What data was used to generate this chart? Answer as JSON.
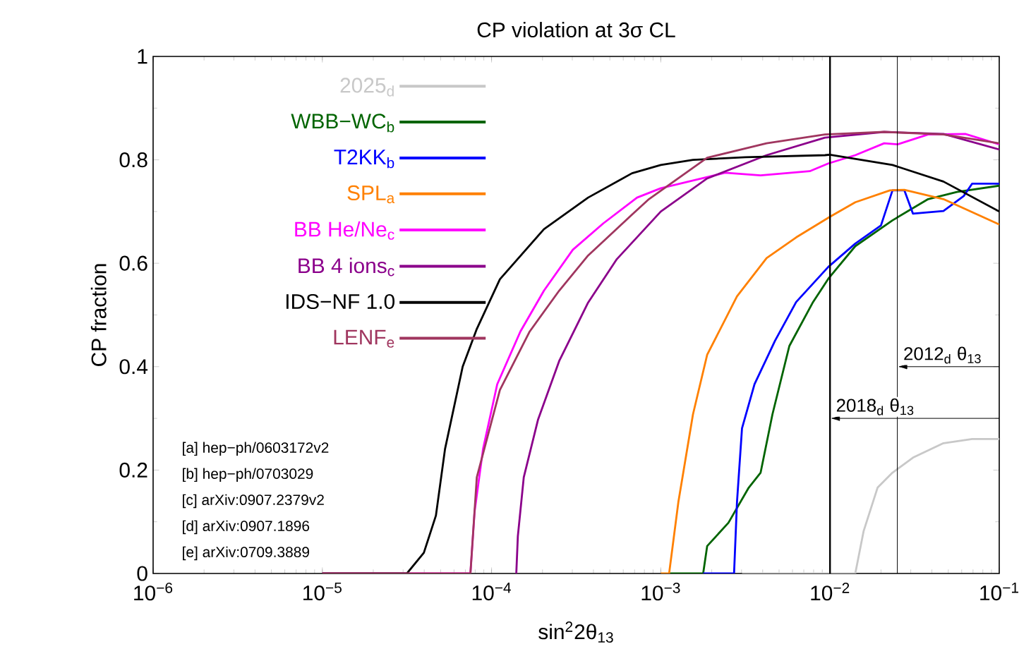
{
  "chart_data": {
    "type": "line",
    "title": "CP violation at 3σ CL",
    "xlabel": "sin$^{2}$2θ$_{13}$",
    "ylabel": "CP fraction",
    "log": "x",
    "xlim": [
      1e-06,
      0.1
    ],
    "ylim": [
      0,
      1
    ],
    "xticks": [
      {
        "value": 1e-06,
        "label": "10$^{−6}$"
      },
      {
        "value": 1e-05,
        "label": "10$^{−5}$"
      },
      {
        "value": 0.0001,
        "label": "10$^{−4}$"
      },
      {
        "value": 0.001,
        "label": "10$^{−3}$"
      },
      {
        "value": 0.01,
        "label": "10$^{−2}$"
      },
      {
        "value": 0.1,
        "label": "10$^{−1}$"
      }
    ],
    "yticks": [
      0,
      0.2,
      0.4,
      0.6,
      0.8,
      1
    ],
    "grid": false,
    "legend": "top left",
    "marker": "none",
    "line_style": "solid",
    "series": [
      {
        "name": "2025$_{d}$",
        "color": "#c8c8c8",
        "x": [
          0.00302,
          0.0141,
          0.0158,
          0.0191,
          0.0234,
          0.0309,
          0.0468,
          0.0692,
          0.1
        ],
        "values": [
          0,
          0,
          0.082,
          0.166,
          0.195,
          0.224,
          0.252,
          0.26,
          0.26
        ]
      },
      {
        "name": "WBB−WC$_{b}$",
        "color": "#006400",
        "x": [
          0.00112,
          0.00178,
          0.00188,
          0.00251,
          0.00331,
          0.00389,
          0.00457,
          0.00575,
          0.00794,
          0.00977,
          0.0141,
          0.0234,
          0.038,
          0.0562,
          0.1
        ],
        "values": [
          0,
          0,
          0.053,
          0.098,
          0.166,
          0.195,
          0.308,
          0.44,
          0.525,
          0.57,
          0.633,
          0.683,
          0.724,
          0.738,
          0.75
        ]
      },
      {
        "name": "T2KK$_{b}$",
        "color": "#0000ff",
        "x": [
          0.00178,
          0.00271,
          0.00282,
          0.00302,
          0.00358,
          0.00473,
          0.00631,
          0.00977,
          0.0141,
          0.02,
          0.0234,
          0.0275,
          0.0309,
          0.0468,
          0.0617,
          0.0692,
          0.1
        ],
        "values": [
          0,
          0,
          0.138,
          0.281,
          0.366,
          0.45,
          0.525,
          0.593,
          0.638,
          0.673,
          0.741,
          0.741,
          0.696,
          0.701,
          0.73,
          0.754,
          0.754
        ]
      },
      {
        "name": "SPL$_{a}$",
        "color": "#ff8000",
        "x": [
          0.001,
          0.00112,
          0.00127,
          0.00155,
          0.00188,
          0.00282,
          0.00422,
          0.00631,
          0.01,
          0.0141,
          0.0226,
          0.0275,
          0.0468,
          0.0955,
          0.1
        ],
        "values": [
          0,
          0,
          0.138,
          0.308,
          0.423,
          0.536,
          0.61,
          0.65,
          0.69,
          0.718,
          0.741,
          0.742,
          0.724,
          0.678,
          0.675
        ]
      },
      {
        "name": "BB He/Ne$_{c}$",
        "color": "#ff00ff",
        "x": [
          1e-05,
          7.5e-05,
          7.94e-05,
          8.91e-05,
          0.000108,
          0.000148,
          0.000204,
          0.000302,
          0.000457,
          0.000724,
          0.001,
          0.0024,
          0.00389,
          0.00759,
          0.00977,
          0.0141,
          0.0209,
          0.0251,
          0.038,
          0.063,
          0.1
        ],
        "values": [
          0,
          0,
          0.12,
          0.241,
          0.366,
          0.468,
          0.547,
          0.626,
          0.677,
          0.727,
          0.745,
          0.775,
          0.77,
          0.778,
          0.793,
          0.809,
          0.832,
          0.83,
          0.849,
          0.85,
          0.83
        ]
      },
      {
        "name": "BB 4 ions$_{c}$",
        "color": "#8b008b",
        "x": [
          0.00014,
          0.000143,
          0.000155,
          0.000188,
          0.000251,
          0.000372,
          0.00055,
          0.001,
          0.00188,
          0.00422,
          0.00933,
          0.0209,
          0.0468,
          0.1
        ],
        "values": [
          0,
          0.072,
          0.186,
          0.297,
          0.411,
          0.524,
          0.608,
          0.7,
          0.764,
          0.809,
          0.843,
          0.854,
          0.85,
          0.82
        ]
      },
      {
        "name": "IDS−NF 1.0",
        "color": "#000000",
        "x": [
          1e-05,
          3.16e-05,
          3.98e-05,
          4.69e-05,
          5.31e-05,
          6.75e-05,
          8.18e-05,
          0.000112,
          0.000204,
          0.000372,
          0.000676,
          0.001,
          0.00155,
          0.00316,
          0.00933,
          0.01,
          0.0234,
          0.0468,
          0.1
        ],
        "values": [
          0,
          0,
          0.04,
          0.112,
          0.241,
          0.4,
          0.473,
          0.569,
          0.666,
          0.727,
          0.774,
          0.79,
          0.8,
          0.805,
          0.809,
          0.81,
          0.79,
          0.758,
          0.7
        ]
      },
      {
        "name": "LENF$_{e}$",
        "color": "#a0365f",
        "x": [
          1e-05,
          7.5e-05,
          8.18e-05,
          0.000112,
          0.000168,
          0.000251,
          0.000372,
          0.000676,
          0.000851,
          0.00188,
          0.00422,
          0.00933,
          0.0209,
          0.0468,
          0.1
        ],
        "values": [
          0,
          0,
          0.186,
          0.355,
          0.468,
          0.547,
          0.615,
          0.694,
          0.724,
          0.804,
          0.832,
          0.849,
          0.854,
          0.849,
          0.832
        ]
      }
    ],
    "ref_lines": [
      {
        "axis": "x",
        "value": 0.025,
        "label": "2012$_{d}$ θ$_{13}$"
      },
      {
        "axis": "x",
        "value": 0.01,
        "label": "2018$_{d}$ θ$_{13}$"
      }
    ],
    "annotations": [
      "[a] hep−ph/0603172v2",
      "[b] hep−ph/0703029",
      "[c] arXiv:0907.2379v2",
      "[d] arXiv:0907.1896",
      "[e] arXiv:0709.3889"
    ]
  }
}
